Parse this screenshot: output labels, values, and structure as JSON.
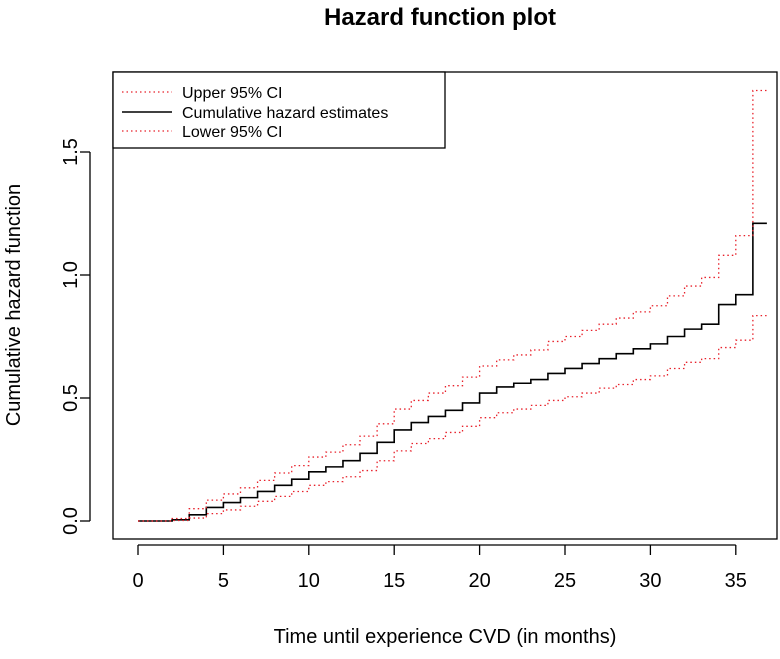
{
  "chart_data": {
    "type": "line",
    "title": "Hazard function plot",
    "xlabel": "Time until experience CVD (in months)",
    "ylabel": "Cumulative hazard function",
    "xlim": [
      0,
      36
    ],
    "ylim": [
      0.0,
      1.75
    ],
    "x_ticks": [
      0,
      5,
      10,
      15,
      20,
      25,
      30,
      35
    ],
    "x_tick_labels": [
      "0",
      "5",
      "10",
      "15",
      "20",
      "25",
      "30",
      "35"
    ],
    "y_ticks": [
      0.0,
      0.5,
      1.0,
      1.5
    ],
    "y_tick_labels": [
      "0.0",
      "0.5",
      "1.0",
      "1.5"
    ],
    "legend": {
      "position": "top-left",
      "entries": [
        {
          "label": "Upper 95% CI",
          "series": "upper"
        },
        {
          "label": "Cumulative hazard estimates",
          "series": "estimate"
        },
        {
          "label": "Lower 95% CI",
          "series": "lower"
        }
      ]
    },
    "series": [
      {
        "name": "Cumulative hazard estimates",
        "key": "estimate",
        "style": "solid",
        "color": "#000000",
        "x": [
          0,
          1,
          2,
          3,
          4,
          5,
          6,
          7,
          8,
          9,
          10,
          11,
          12,
          13,
          14,
          15,
          16,
          17,
          18,
          19,
          20,
          21,
          22,
          23,
          24,
          25,
          26,
          27,
          28,
          29,
          30,
          31,
          32,
          33,
          34,
          35,
          36
        ],
        "y": [
          0.0,
          0.0,
          0.005,
          0.025,
          0.055,
          0.075,
          0.095,
          0.12,
          0.145,
          0.17,
          0.2,
          0.22,
          0.245,
          0.275,
          0.32,
          0.37,
          0.4,
          0.425,
          0.45,
          0.48,
          0.52,
          0.545,
          0.56,
          0.575,
          0.6,
          0.62,
          0.64,
          0.66,
          0.68,
          0.7,
          0.72,
          0.75,
          0.78,
          0.8,
          0.88,
          0.92,
          1.21
        ]
      },
      {
        "name": "Upper 95% CI",
        "key": "upper",
        "style": "dotted",
        "color": "#e8202a",
        "x": [
          0,
          1,
          2,
          3,
          4,
          5,
          6,
          7,
          8,
          9,
          10,
          11,
          12,
          13,
          14,
          15,
          16,
          17,
          18,
          19,
          20,
          21,
          22,
          23,
          24,
          25,
          26,
          27,
          28,
          29,
          30,
          31,
          32,
          33,
          34,
          35,
          36
        ],
        "y": [
          0.0,
          0.0,
          0.01,
          0.05,
          0.085,
          0.11,
          0.135,
          0.165,
          0.195,
          0.225,
          0.26,
          0.28,
          0.31,
          0.345,
          0.395,
          0.455,
          0.49,
          0.52,
          0.55,
          0.585,
          0.63,
          0.655,
          0.675,
          0.695,
          0.73,
          0.75,
          0.775,
          0.8,
          0.825,
          0.85,
          0.875,
          0.915,
          0.955,
          0.99,
          1.08,
          1.16,
          1.75
        ]
      },
      {
        "name": "Lower 95% CI",
        "key": "lower",
        "style": "dotted",
        "color": "#e8202a",
        "x": [
          0,
          1,
          2,
          3,
          4,
          5,
          6,
          7,
          8,
          9,
          10,
          11,
          12,
          13,
          14,
          15,
          16,
          17,
          18,
          19,
          20,
          21,
          22,
          23,
          24,
          25,
          26,
          27,
          28,
          29,
          30,
          31,
          32,
          33,
          34,
          35,
          36
        ],
        "y": [
          0.0,
          0.0,
          0.002,
          0.012,
          0.03,
          0.045,
          0.06,
          0.08,
          0.1,
          0.12,
          0.145,
          0.16,
          0.18,
          0.205,
          0.245,
          0.285,
          0.315,
          0.335,
          0.36,
          0.385,
          0.42,
          0.44,
          0.455,
          0.47,
          0.49,
          0.505,
          0.52,
          0.54,
          0.555,
          0.575,
          0.59,
          0.62,
          0.645,
          0.66,
          0.705,
          0.735,
          0.835
        ]
      }
    ]
  }
}
